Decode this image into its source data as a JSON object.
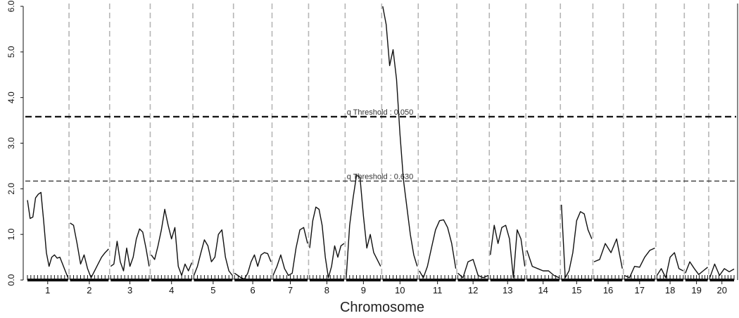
{
  "chart_data": {
    "type": "line",
    "title": "",
    "xlabel": "Chromosome",
    "ylabel": "",
    "ylim": [
      0,
      6.0
    ],
    "yticks": [
      "0.0",
      "1.0",
      "2.0",
      "3.0",
      "4.0",
      "5.0",
      "6.0"
    ],
    "grid": "vertical dashed separators between chromosomes",
    "thresholds": [
      {
        "label": "q Threshold : 0.050",
        "value": 3.58,
        "style": "bold-dashed"
      },
      {
        "label": "q Threshold : 0.630",
        "value": 2.17,
        "style": "thin-dashed"
      }
    ],
    "chromosomes": [
      {
        "label": "1",
        "length": 1.0,
        "values": [
          1.75,
          1.35,
          1.38,
          1.8,
          1.88,
          1.92,
          1.3,
          0.6,
          0.3,
          0.5,
          0.55,
          0.48,
          0.5,
          0.35,
          0.2,
          0.05
        ]
      },
      {
        "label": "2",
        "length": 0.95,
        "values": [
          1.25,
          1.2,
          0.8,
          0.35,
          0.55,
          0.25,
          0.05,
          0.2,
          0.35,
          0.5,
          0.6,
          0.68
        ]
      },
      {
        "label": "3",
        "length": 0.95,
        "values": [
          0.3,
          0.35,
          0.85,
          0.4,
          0.2,
          0.7,
          0.3,
          0.5,
          0.9,
          1.12,
          1.05,
          0.7,
          0.3
        ]
      },
      {
        "label": "4",
        "length": 1.0,
        "values": [
          0.55,
          0.45,
          0.75,
          1.1,
          1.55,
          1.2,
          0.9,
          1.15,
          0.3,
          0.1,
          0.35,
          0.2,
          0.38
        ]
      },
      {
        "label": "5",
        "length": 0.95,
        "values": [
          0.1,
          0.3,
          0.6,
          0.88,
          0.75,
          0.4,
          0.5,
          1.0,
          1.1,
          0.5,
          0.2,
          0.1
        ]
      },
      {
        "label": "6",
        "length": 0.9,
        "values": [
          0.15,
          0.1,
          0.05,
          0.02,
          0.15,
          0.4,
          0.55,
          0.3,
          0.55,
          0.6,
          0.58,
          0.4
        ]
      },
      {
        "label": "7",
        "length": 0.85,
        "values": [
          0.1,
          0.3,
          0.55,
          0.25,
          0.1,
          0.15,
          0.7,
          1.1,
          1.15,
          0.8
        ]
      },
      {
        "label": "8",
        "length": 0.85,
        "values": [
          0.7,
          1.3,
          1.6,
          1.55,
          1.2,
          0.5,
          0.05,
          0.3,
          0.75,
          0.5,
          0.75,
          0.8
        ]
      },
      {
        "label": "9",
        "length": 0.85,
        "values": [
          0.05,
          1.2,
          1.8,
          2.3,
          2.25,
          1.4,
          0.7,
          1.0,
          0.6,
          0.45,
          0.3
        ]
      },
      {
        "label": "10",
        "length": 0.85,
        "values": [
          6.0,
          5.6,
          4.7,
          5.05,
          4.4,
          3.2,
          2.2,
          1.6,
          1.0,
          0.55,
          0.3
        ]
      },
      {
        "label": "11",
        "length": 0.9,
        "values": [
          0.2,
          0.05,
          0.3,
          0.7,
          1.1,
          1.3,
          1.32,
          1.15,
          0.8,
          0.25
        ]
      },
      {
        "label": "12",
        "length": 0.75,
        "values": [
          0.15,
          0.05,
          0.4,
          0.45,
          0.1,
          0.05,
          0.1
        ]
      },
      {
        "label": "13",
        "length": 0.85,
        "values": [
          0.55,
          1.2,
          0.8,
          1.15,
          1.2,
          0.9,
          0.05,
          1.1,
          0.9,
          0.3
        ]
      },
      {
        "label": "14",
        "length": 0.8,
        "values": [
          0.65,
          0.3,
          0.25,
          0.2,
          0.2,
          0.1,
          0.05
        ]
      },
      {
        "label": "15",
        "length": 0.75,
        "values": [
          1.65,
          0.05,
          0.2,
          0.6,
          1.3,
          1.5,
          1.45,
          1.1,
          0.9
        ]
      },
      {
        "label": "16",
        "length": 0.7,
        "values": [
          0.4,
          0.45,
          0.8,
          0.6,
          0.9,
          0.25
        ]
      },
      {
        "label": "17",
        "length": 0.75,
        "values": [
          0.1,
          0.05,
          0.3,
          0.28,
          0.5,
          0.65,
          0.7
        ]
      },
      {
        "label": "18",
        "length": 0.65,
        "values": [
          0.1,
          0.25,
          0.05,
          0.5,
          0.6,
          0.25,
          0.2
        ]
      },
      {
        "label": "19",
        "length": 0.55,
        "values": [
          0.15,
          0.4,
          0.25,
          0.12,
          0.2,
          0.28
        ]
      },
      {
        "label": "20",
        "length": 0.6,
        "values": [
          0.05,
          0.35,
          0.1,
          0.25,
          0.18,
          0.24
        ]
      }
    ]
  }
}
